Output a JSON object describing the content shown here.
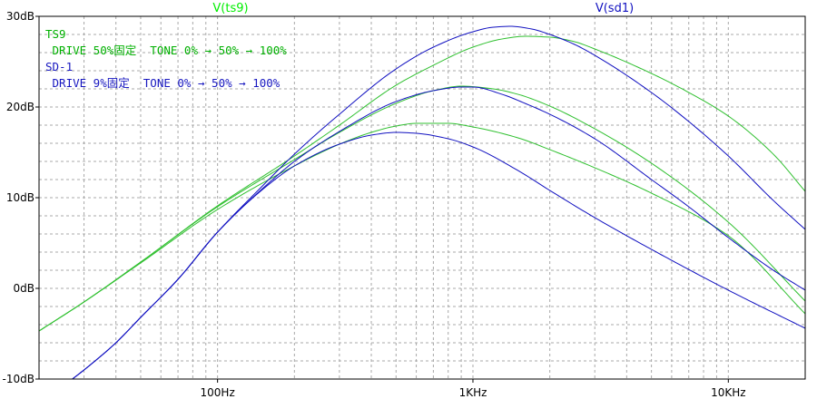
{
  "chart_data": {
    "type": "line",
    "xscale": "log",
    "xlim": [
      20,
      20000
    ],
    "ylim": [
      -10,
      30
    ],
    "grid": true,
    "xticks": [
      {
        "value": 100,
        "label": "100Hz"
      },
      {
        "value": 1000,
        "label": "1KHz"
      },
      {
        "value": 10000,
        "label": "10KHz"
      }
    ],
    "yticks": [
      {
        "value": 30,
        "label": "30dB"
      },
      {
        "value": 20,
        "label": "20dB"
      },
      {
        "value": 10,
        "label": "10dB"
      },
      {
        "value": 0,
        "label": "0dB"
      },
      {
        "value": -10,
        "label": "-10dB"
      }
    ],
    "trace_names": [
      {
        "name": "V(ts9)",
        "color": "#00ee00"
      },
      {
        "name": "V(sd1)",
        "color": "#1010c0"
      }
    ],
    "annotations": [
      {
        "text": "TS9",
        "color": "#00b000"
      },
      {
        "text": " DRIVE 50%固定  TONE 0% → 50% → 100%",
        "color": "#00b000"
      },
      {
        "text": "SD-1",
        "color": "#1818c0"
      },
      {
        "text": " DRIVE 9%固定  TONE 0% → 50% → 100%",
        "color": "#1818c0"
      }
    ],
    "series": [
      {
        "color": "#30c030",
        "x": [
          20,
          30,
          50,
          100,
          200,
          300,
          400,
          500,
          600,
          800,
          1000,
          1500,
          2000,
          3000,
          5000,
          10000,
          20000
        ],
        "y": [
          -4.7,
          -1.5,
          2.8,
          8.7,
          13.5,
          15.9,
          17.2,
          17.9,
          18.2,
          18.2,
          17.8,
          16.6,
          15.3,
          13.3,
          10.5,
          5.8,
          -2.8
        ]
      },
      {
        "color": "#30c030",
        "x": [
          20,
          30,
          50,
          100,
          200,
          300,
          500,
          700,
          900,
          1200,
          1500,
          2000,
          3000,
          5000,
          10000,
          20000
        ],
        "y": [
          -4.7,
          -1.5,
          2.9,
          9.0,
          14.2,
          17.2,
          20.4,
          21.8,
          22.3,
          22.0,
          21.4,
          20.1,
          17.6,
          13.8,
          7.3,
          -1.4
        ]
      },
      {
        "color": "#30c030",
        "x": [
          20,
          30,
          50,
          100,
          200,
          300,
          500,
          700,
          1000,
          1300,
          1600,
          2000,
          2500,
          3000,
          5000,
          7000,
          10000,
          15000,
          20000
        ],
        "y": [
          -4.7,
          -1.5,
          2.9,
          9.1,
          14.6,
          18.0,
          22.4,
          24.6,
          26.6,
          27.5,
          27.8,
          27.7,
          27.2,
          26.4,
          23.7,
          21.6,
          19.0,
          14.8,
          10.7
        ]
      },
      {
        "color": "#1010c0",
        "x": [
          27,
          30,
          40,
          50,
          70,
          100,
          150,
          200,
          300,
          400,
          500,
          600,
          800,
          1000,
          1500,
          2000,
          3000,
          5000,
          10000,
          20000
        ],
        "y": [
          -10,
          -9.0,
          -6.0,
          -3.2,
          1.0,
          6.2,
          10.9,
          13.5,
          15.9,
          16.9,
          17.2,
          17.1,
          16.5,
          15.6,
          13.0,
          10.8,
          7.8,
          4.3,
          -0.2,
          -4.4
        ]
      },
      {
        "color": "#1010c0",
        "x": [
          27,
          30,
          40,
          50,
          70,
          100,
          150,
          200,
          300,
          500,
          700,
          900,
          1000,
          1300,
          1600,
          2000,
          3000,
          5000,
          7000,
          10000,
          15000,
          20000
        ],
        "y": [
          -10,
          -9.0,
          -6.0,
          -3.2,
          1.0,
          6.2,
          11.0,
          14.0,
          17.3,
          20.6,
          21.8,
          22.2,
          22.2,
          21.4,
          20.4,
          19.2,
          16.5,
          12.0,
          9.0,
          5.6,
          2.0,
          -0.2
        ]
      },
      {
        "color": "#1010c0",
        "x": [
          27,
          30,
          40,
          50,
          70,
          100,
          150,
          200,
          300,
          500,
          700,
          1000,
          1200,
          1400,
          1700,
          2000,
          2500,
          3000,
          5000,
          7000,
          10000,
          15000,
          20000
        ],
        "y": [
          -10,
          -9.0,
          -6.0,
          -3.2,
          1.0,
          6.2,
          11.3,
          14.8,
          19.2,
          24.2,
          26.6,
          28.3,
          28.8,
          28.9,
          28.6,
          28.0,
          26.9,
          25.7,
          21.6,
          18.4,
          14.6,
          9.7,
          6.5
        ]
      }
    ]
  }
}
